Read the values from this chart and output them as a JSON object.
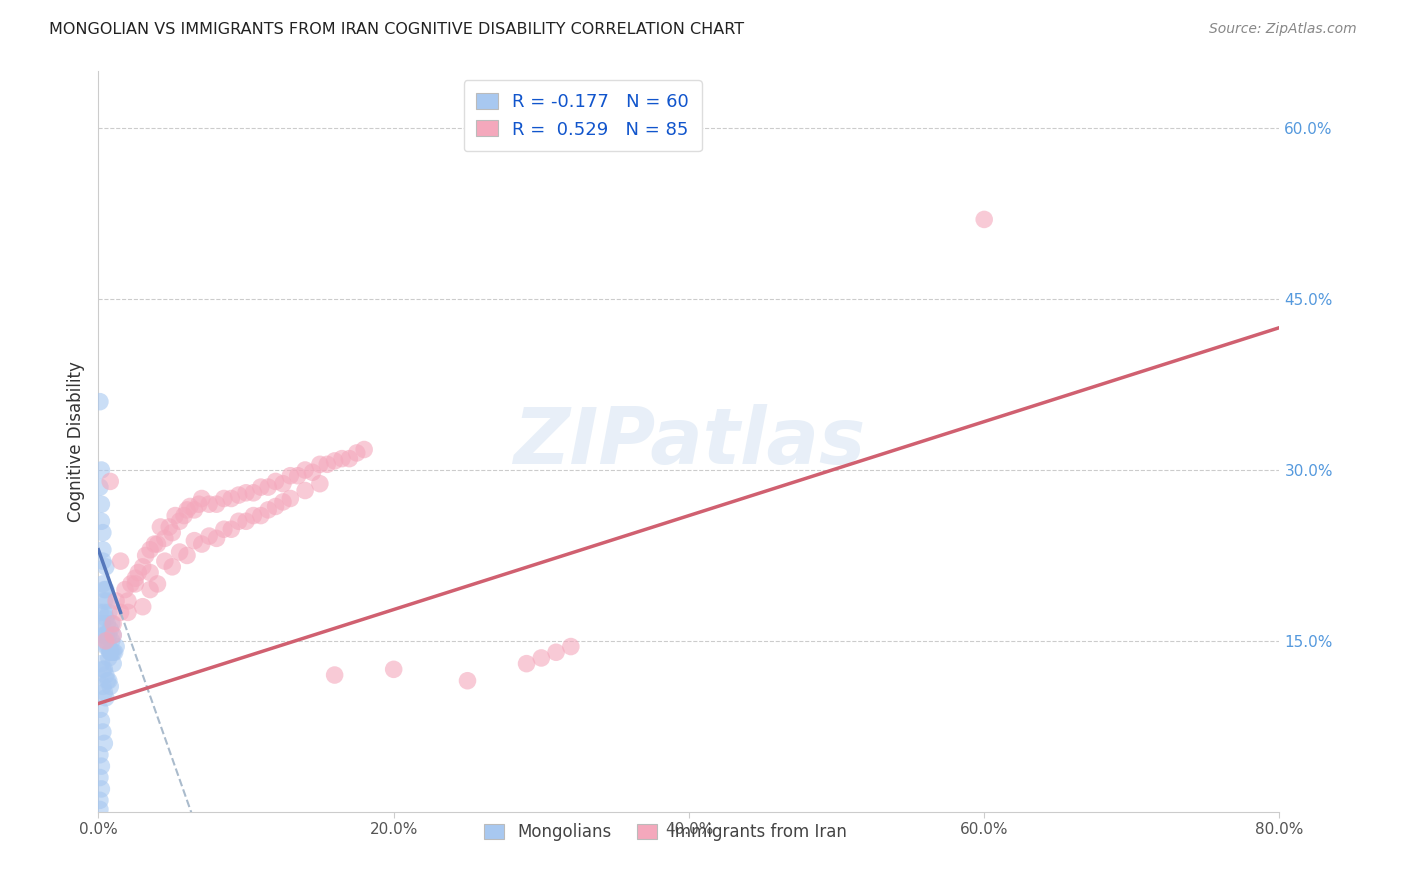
{
  "title": "MONGOLIAN VS IMMIGRANTS FROM IRAN COGNITIVE DISABILITY CORRELATION CHART",
  "source": "Source: ZipAtlas.com",
  "ylabel": "Cognitive Disability",
  "watermark": "ZIPatlas",
  "legend_entries": [
    {
      "label": "R = -0.177   N = 60",
      "color": "#aac4e8"
    },
    {
      "label": "R =  0.529   N = 85",
      "color": "#f4a7b9"
    }
  ],
  "legend_labels_bottom": [
    "Mongolians",
    "Immigrants from Iran"
  ],
  "mongolian_color": "#a8c8f0",
  "iran_color": "#f4a8bc",
  "trend_mongolian_color": "#5577bb",
  "trend_iran_color": "#d06070",
  "trend_dash_color": "#aabbcc",
  "xlim": [
    0.0,
    0.8
  ],
  "ylim": [
    0.0,
    0.65
  ],
  "xticklabels": [
    "0.0%",
    "20.0%",
    "40.0%",
    "60.0%",
    "80.0%"
  ],
  "xticks": [
    0.0,
    0.2,
    0.4,
    0.6,
    0.8
  ],
  "right_yticks": [
    0.15,
    0.3,
    0.45,
    0.6
  ],
  "right_yticklabels": [
    "15.0%",
    "30.0%",
    "45.0%",
    "60.0%"
  ],
  "mongolian_x": [
    0.001,
    0.001,
    0.002,
    0.002,
    0.002,
    0.003,
    0.003,
    0.003,
    0.003,
    0.004,
    0.004,
    0.004,
    0.005,
    0.005,
    0.005,
    0.005,
    0.006,
    0.006,
    0.006,
    0.007,
    0.007,
    0.007,
    0.008,
    0.008,
    0.009,
    0.009,
    0.01,
    0.01,
    0.011,
    0.012,
    0.001,
    0.002,
    0.003,
    0.004,
    0.005,
    0.006,
    0.007,
    0.008,
    0.009,
    0.01,
    0.002,
    0.003,
    0.004,
    0.005,
    0.006,
    0.007,
    0.008,
    0.003,
    0.004,
    0.005,
    0.001,
    0.002,
    0.003,
    0.004,
    0.001,
    0.002,
    0.001,
    0.002,
    0.001,
    0.001
  ],
  "mongolian_y": [
    0.36,
    0.285,
    0.27,
    0.3,
    0.255,
    0.23,
    0.245,
    0.22,
    0.2,
    0.185,
    0.195,
    0.175,
    0.215,
    0.195,
    0.17,
    0.155,
    0.185,
    0.165,
    0.15,
    0.175,
    0.155,
    0.145,
    0.16,
    0.14,
    0.165,
    0.15,
    0.155,
    0.14,
    0.14,
    0.145,
    0.175,
    0.165,
    0.155,
    0.155,
    0.145,
    0.145,
    0.135,
    0.14,
    0.14,
    0.13,
    0.13,
    0.125,
    0.125,
    0.12,
    0.115,
    0.115,
    0.11,
    0.11,
    0.105,
    0.1,
    0.09,
    0.08,
    0.07,
    0.06,
    0.05,
    0.04,
    0.03,
    0.02,
    0.01,
    0.002
  ],
  "iran_x": [
    0.005,
    0.008,
    0.01,
    0.012,
    0.015,
    0.015,
    0.018,
    0.02,
    0.022,
    0.025,
    0.027,
    0.03,
    0.032,
    0.035,
    0.038,
    0.04,
    0.042,
    0.045,
    0.048,
    0.05,
    0.052,
    0.055,
    0.058,
    0.06,
    0.062,
    0.065,
    0.068,
    0.07,
    0.075,
    0.08,
    0.085,
    0.09,
    0.095,
    0.1,
    0.105,
    0.11,
    0.115,
    0.12,
    0.125,
    0.13,
    0.135,
    0.14,
    0.145,
    0.15,
    0.155,
    0.16,
    0.165,
    0.17,
    0.175,
    0.18,
    0.01,
    0.02,
    0.03,
    0.035,
    0.04,
    0.05,
    0.06,
    0.07,
    0.08,
    0.09,
    0.1,
    0.11,
    0.12,
    0.13,
    0.14,
    0.15,
    0.025,
    0.035,
    0.045,
    0.055,
    0.065,
    0.075,
    0.085,
    0.095,
    0.105,
    0.115,
    0.125,
    0.16,
    0.2,
    0.25,
    0.29,
    0.3,
    0.31,
    0.32,
    0.6
  ],
  "iran_y": [
    0.15,
    0.29,
    0.165,
    0.185,
    0.175,
    0.22,
    0.195,
    0.185,
    0.2,
    0.2,
    0.21,
    0.215,
    0.225,
    0.23,
    0.235,
    0.235,
    0.25,
    0.24,
    0.25,
    0.245,
    0.26,
    0.255,
    0.26,
    0.265,
    0.268,
    0.265,
    0.27,
    0.275,
    0.27,
    0.27,
    0.275,
    0.275,
    0.278,
    0.28,
    0.28,
    0.285,
    0.285,
    0.29,
    0.288,
    0.295,
    0.295,
    0.3,
    0.298,
    0.305,
    0.305,
    0.308,
    0.31,
    0.31,
    0.315,
    0.318,
    0.155,
    0.175,
    0.18,
    0.195,
    0.2,
    0.215,
    0.225,
    0.235,
    0.24,
    0.248,
    0.255,
    0.26,
    0.268,
    0.275,
    0.282,
    0.288,
    0.205,
    0.21,
    0.22,
    0.228,
    0.238,
    0.242,
    0.248,
    0.255,
    0.26,
    0.265,
    0.272,
    0.12,
    0.125,
    0.115,
    0.13,
    0.135,
    0.14,
    0.145,
    0.52
  ]
}
